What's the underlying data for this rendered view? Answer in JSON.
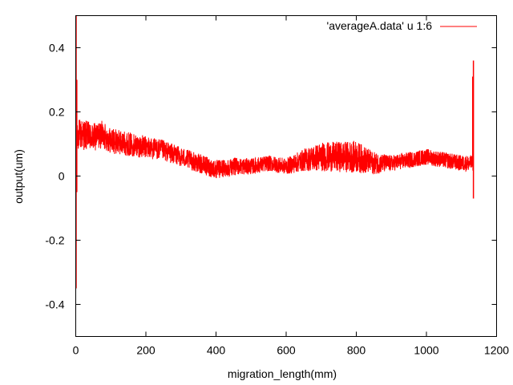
{
  "chart_data": {
    "type": "line",
    "title": "",
    "xlabel": "migration_length(mm)",
    "ylabel": "output(um)",
    "xlim": [
      0,
      1200
    ],
    "ylim": [
      -0.5,
      0.5
    ],
    "xticks": [
      0,
      200,
      400,
      600,
      800,
      1000,
      1200
    ],
    "yticks": [
      -0.4,
      -0.2,
      0,
      0.2,
      0.4
    ],
    "xtick_labels": [
      "0",
      "200",
      "400",
      "600",
      "800",
      "1000",
      "1200"
    ],
    "ytick_labels": [
      "-0.4",
      "-0.2",
      "0",
      "0.2",
      "0.4"
    ],
    "grid": false,
    "legend_position": "top-right",
    "series": [
      {
        "name": "'averageA.data' u 1:6",
        "color": "#ff0000",
        "x_range": [
          0,
          1134
        ],
        "trend": {
          "x": [
            0,
            5,
            20,
            50,
            75,
            100,
            150,
            200,
            250,
            300,
            350,
            400,
            450,
            500,
            550,
            600,
            650,
            700,
            750,
            800,
            850,
            900,
            950,
            1000,
            1050,
            1100,
            1130
          ],
          "y": [
            0.1,
            0.13,
            0.13,
            0.12,
            0.13,
            0.11,
            0.1,
            0.09,
            0.08,
            0.06,
            0.04,
            0.02,
            0.03,
            0.03,
            0.04,
            0.03,
            0.05,
            0.06,
            0.06,
            0.06,
            0.04,
            0.04,
            0.05,
            0.06,
            0.05,
            0.04,
            0.04
          ]
        },
        "noise_amplitude": {
          "x": [
            0,
            100,
            200,
            300,
            400,
            500,
            600,
            700,
            800,
            850,
            900,
            1000,
            1134
          ],
          "a": [
            0.05,
            0.04,
            0.035,
            0.03,
            0.03,
            0.025,
            0.025,
            0.045,
            0.05,
            0.035,
            0.025,
            0.025,
            0.025
          ]
        },
        "spikes": [
          {
            "x": 1,
            "y": [
              -0.35,
              0.5
            ]
          },
          {
            "x": 3,
            "y": [
              -0.05,
              0.3
            ]
          },
          {
            "x": 1132,
            "y": [
              0.05,
              0.31
            ]
          },
          {
            "x": 1134,
            "y": [
              -0.07,
              0.36
            ]
          }
        ]
      }
    ]
  }
}
